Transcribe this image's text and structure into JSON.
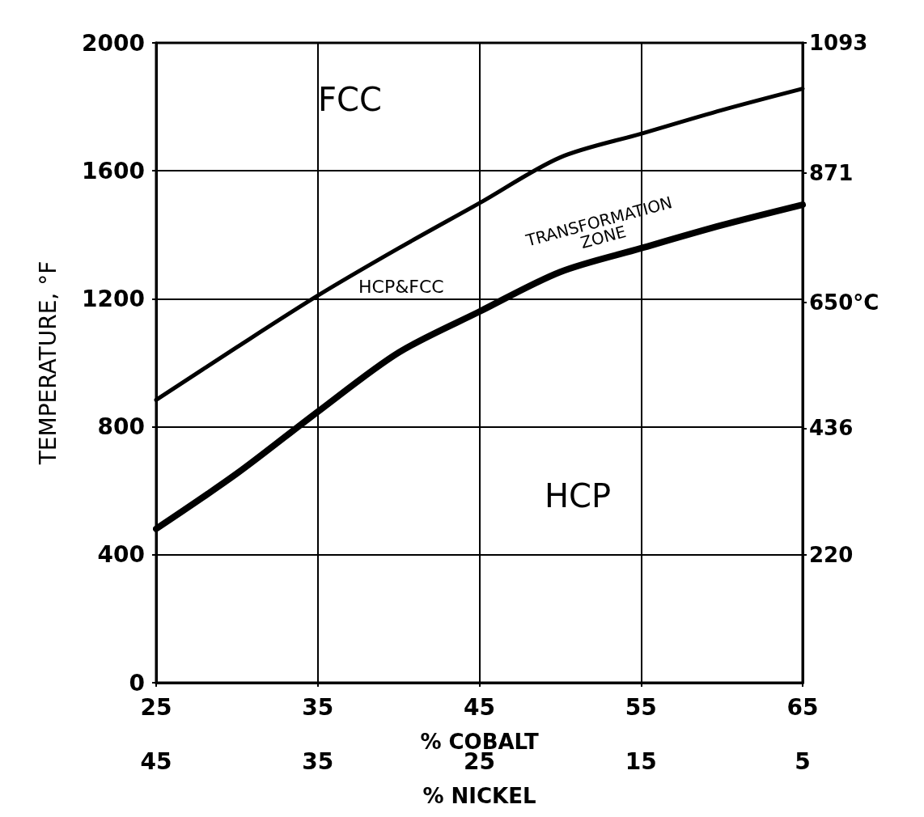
{
  "chart_data": {
    "type": "line",
    "x": [
      25,
      30,
      35,
      40,
      45,
      50,
      55,
      60,
      65
    ],
    "series": [
      {
        "color": "#000000",
        "values": [
          884,
          1049,
          1210,
          1358,
          1499,
          1642,
          1716,
          1790,
          1857
        ]
      },
      {
        "color": "#000000",
        "values": [
          481,
          654,
          847,
          1032,
          1160,
          1284,
          1358,
          1430,
          1494
        ]
      }
    ],
    "xlim": [
      25,
      65
    ],
    "xticks": [
      25,
      35,
      45,
      55,
      65
    ],
    "xlabel": "% COBALT",
    "x2lim": [
      45,
      5
    ],
    "x2ticks": [
      45,
      35,
      25,
      15,
      5
    ],
    "x2label": "% NICKEL",
    "ylim": [
      0,
      2000
    ],
    "yticks": [
      0,
      400,
      800,
      1200,
      1600,
      2000
    ],
    "ylabel": "TEMPERATURE, °F",
    "y2lim": [
      2,
      1093
    ],
    "y2ticks": [
      220,
      436,
      {
        "value": 650,
        "label": "650°C"
      },
      871,
      1093
    ],
    "annotations": [
      "FCC",
      "HCP",
      "HCP&FCC",
      "TRANSFORMATION ZONE"
    ],
    "grid": true,
    "marker": "none",
    "line_style": "solid"
  }
}
